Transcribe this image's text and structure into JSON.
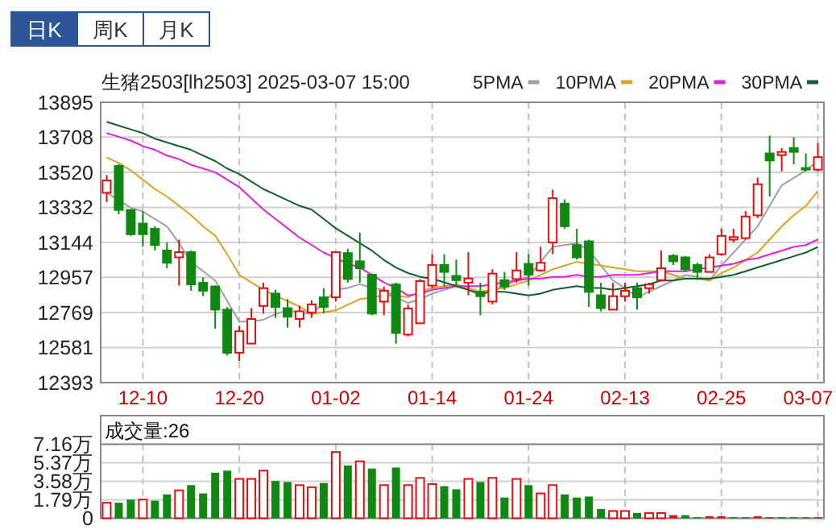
{
  "chart_data": [
    {
      "type": "candlestick",
      "title": "生猪2503[lh2503] 2025-03-07 15:00",
      "annotations": [
        "日K",
        "周K",
        "月K"
      ],
      "categories": [
        null,
        null,
        null,
        "12-10",
        null,
        null,
        null,
        null,
        null,
        null,
        null,
        "12-20",
        null,
        null,
        null,
        null,
        null,
        null,
        null,
        "01-02",
        null,
        null,
        null,
        null,
        null,
        null,
        null,
        "01-14",
        null,
        null,
        null,
        null,
        null,
        null,
        null,
        "01-24",
        null,
        null,
        null,
        null,
        null,
        null,
        null,
        "02-13",
        null,
        null,
        null,
        null,
        null,
        null,
        null,
        "02-25",
        null,
        null,
        null,
        null,
        null,
        null,
        null,
        "03-07"
      ],
      "ohlc": [
        [
          13410,
          13505,
          13361,
          13476
        ],
        [
          13554,
          13563,
          13295,
          13318
        ],
        [
          13318,
          13323,
          13179,
          13188
        ],
        [
          13245,
          13312,
          13121,
          13188
        ],
        [
          13217,
          13231,
          13101,
          13130
        ],
        [
          13101,
          13144,
          13006,
          13035
        ],
        [
          13064,
          13159,
          12913,
          13092
        ],
        [
          13092,
          13101,
          12885,
          12919
        ],
        [
          12928,
          12957,
          12856,
          12885
        ],
        [
          12908,
          12913,
          12682,
          12784
        ],
        [
          12784,
          12798,
          12538,
          12553
        ],
        [
          12553,
          12697,
          12509,
          12668
        ],
        [
          12602,
          12792,
          12602,
          12734
        ],
        [
          12804,
          12928,
          12763,
          12899
        ],
        [
          12870,
          12890,
          12740,
          12798
        ],
        [
          12792,
          12841,
          12688,
          12746
        ],
        [
          12734,
          12804,
          12688,
          12775
        ],
        [
          12769,
          12833,
          12740,
          12812
        ],
        [
          12850,
          12899,
          12763,
          12798
        ],
        [
          12850,
          13092,
          12827,
          13092
        ],
        [
          13087,
          13110,
          12928,
          12948
        ],
        [
          13043,
          13196,
          12928,
          13006
        ],
        [
          12971,
          12977,
          12754,
          12763
        ],
        [
          12827,
          12908,
          12754,
          12885
        ],
        [
          12919,
          12928,
          12602,
          12659
        ],
        [
          12650,
          12810,
          12640,
          12790
        ],
        [
          12711,
          12948,
          12711,
          12937
        ],
        [
          12913,
          13081,
          12899,
          13023
        ],
        [
          13023,
          13081,
          12908,
          12986
        ],
        [
          12965,
          13052,
          12908,
          12942
        ],
        [
          12928,
          13092,
          12861,
          12951
        ],
        [
          12879,
          12928,
          12755,
          12856
        ],
        [
          12827,
          13000,
          12812,
          12977
        ],
        [
          12942,
          12986,
          12890,
          12908
        ],
        [
          12948,
          13092,
          12928,
          12994
        ],
        [
          13029,
          13081,
          12913,
          12971
        ],
        [
          12994,
          13121,
          12986,
          13035
        ],
        [
          13144,
          13427,
          13081,
          13381
        ],
        [
          13352,
          13375,
          13217,
          13231
        ],
        [
          13130,
          13217,
          13052,
          13064
        ],
        [
          13150,
          13159,
          12798,
          12879
        ],
        [
          12861,
          12928,
          12775,
          12792
        ],
        [
          12784,
          12928,
          12784,
          12856
        ],
        [
          12856,
          12928,
          12827,
          12885
        ],
        [
          12899,
          12928,
          12784,
          12850
        ],
        [
          12899,
          12928,
          12870,
          12919
        ],
        [
          12942,
          13101,
          12942,
          13006
        ],
        [
          13072,
          13081,
          13023,
          13043
        ],
        [
          13064,
          13072,
          12986,
          13000
        ],
        [
          13023,
          13035,
          12942,
          12986
        ],
        [
          12986,
          13081,
          12986,
          13064
        ],
        [
          13081,
          13217,
          13072,
          13179
        ],
        [
          13159,
          13217,
          13144,
          13173
        ],
        [
          13167,
          13312,
          13159,
          13283
        ],
        [
          13289,
          13491,
          13275,
          13456
        ],
        [
          13621,
          13716,
          13390,
          13583
        ],
        [
          13612,
          13650,
          13525,
          13629
        ],
        [
          13650,
          13707,
          13563,
          13629
        ],
        [
          13543,
          13621,
          13525,
          13534
        ],
        [
          13534,
          13678,
          13525,
          13601
        ]
      ],
      "colors": [
        "#e01010",
        "#118811",
        "#118811",
        "#118811",
        "#118811",
        "#118811",
        "#e01010",
        "#118811",
        "#118811",
        "#118811",
        "#118811",
        "#e01010",
        "#e01010",
        "#e01010",
        "#118811",
        "#118811",
        "#e01010",
        "#e01010",
        "#118811",
        "#e01010",
        "#118811",
        "#118811",
        "#118811",
        "#e01010",
        "#118811",
        "#e01010",
        "#e01010",
        "#e01010",
        "#118811",
        "#118811",
        "#e01010",
        "#118811",
        "#e01010",
        "#118811",
        "#e01010",
        "#118811",
        "#e01010",
        "#e01010",
        "#118811",
        "#118811",
        "#118811",
        "#118811",
        "#e01010",
        "#e01010",
        "#118811",
        "#e01010",
        "#e01010",
        "#118811",
        "#118811",
        "#118811",
        "#e01010",
        "#e01010",
        "#e01010",
        "#e01010",
        "#e01010",
        "#118811",
        "#e01010",
        "#118811",
        "#118811",
        "#e01010"
      ],
      "series": [
        {
          "name": "5PMA",
          "type": "line",
          "color": "#a0a0a0",
          "values": [
            13410,
            13370,
            13330,
            13310,
            13270,
            13230,
            13140,
            13040,
            12990,
            12940,
            12830,
            12720,
            12720,
            12730,
            12760,
            12780,
            12770,
            12760,
            12820,
            12890,
            12900,
            12920,
            12900,
            12890,
            12850,
            12820,
            12840,
            12870,
            12890,
            12910,
            12890,
            12860,
            12890,
            12910,
            12940,
            12960,
            13040,
            13120,
            13130,
            13140,
            13100,
            13020,
            12940,
            12900,
            12850,
            12880,
            12910,
            12940,
            12970,
            12960,
            12940,
            13020,
            13090,
            13160,
            13230,
            13340,
            13450,
            13490,
            13530,
            13580
          ]
        },
        {
          "name": "10PMA",
          "type": "line",
          "color": "#e0a020",
          "values": [
            13600,
            13570,
            13530,
            13480,
            13430,
            13390,
            13340,
            13290,
            13230,
            13180,
            13080,
            12970,
            12930,
            12890,
            12860,
            12830,
            12800,
            12760,
            12770,
            12780,
            12810,
            12840,
            12850,
            12860,
            12860,
            12850,
            12880,
            12900,
            12910,
            12920,
            12900,
            12880,
            12890,
            12900,
            12920,
            12940,
            12970,
            13000,
            13020,
            13040,
            13030,
            13020,
            13010,
            13000,
            12990,
            12990,
            12990,
            12970,
            12950,
            12950,
            12940,
            12980,
            13010,
            13050,
            13090,
            13160,
            13230,
            13290,
            13340,
            13420
          ]
        },
        {
          "name": "20PMA",
          "type": "line",
          "color": "#e020e0",
          "values": [
            13730,
            13710,
            13690,
            13660,
            13640,
            13610,
            13590,
            13560,
            13540,
            13520,
            13480,
            13440,
            13380,
            13320,
            13270,
            13220,
            13170,
            13130,
            13090,
            13060,
            13030,
            13010,
            12970,
            12930,
            12900,
            12860,
            12870,
            12890,
            12900,
            12910,
            12910,
            12910,
            12920,
            12930,
            12940,
            12950,
            12950,
            12960,
            12960,
            12970,
            12960,
            12960,
            12970,
            12970,
            12970,
            12980,
            12990,
            12990,
            12990,
            13000,
            13010,
            13020,
            13030,
            13050,
            13060,
            13080,
            13100,
            13120,
            13130,
            13160
          ]
        },
        {
          "name": "30PMA",
          "type": "line",
          "color": "#106030",
          "values": [
            13790,
            13770,
            13750,
            13730,
            13700,
            13680,
            13660,
            13640,
            13610,
            13580,
            13540,
            13510,
            13470,
            13430,
            13400,
            13370,
            13340,
            13320,
            13270,
            13220,
            13180,
            13140,
            13100,
            13050,
            13010,
            12980,
            12960,
            12950,
            12930,
            12910,
            12890,
            12870,
            12880,
            12880,
            12870,
            12860,
            12870,
            12890,
            12900,
            12910,
            12900,
            12900,
            12890,
            12900,
            12910,
            12920,
            12940,
            12940,
            12950,
            12950,
            12950,
            12960,
            12970,
            12990,
            13010,
            13030,
            13050,
            13070,
            13090,
            13120
          ]
        }
      ],
      "ylim": [
        12393,
        13895
      ],
      "yticks": [
        12393,
        12581,
        12769,
        12957,
        13144,
        13332,
        13520,
        13708,
        13895
      ],
      "grid": true,
      "legend": "top right"
    },
    {
      "type": "bar",
      "title": "成交量:26",
      "categories": [
        null,
        null,
        null,
        null,
        null,
        null,
        null,
        null,
        null,
        null,
        null,
        null,
        null,
        null,
        null,
        null,
        null,
        null,
        null,
        null,
        null,
        null,
        null,
        null,
        null,
        null,
        null,
        null,
        null,
        null,
        null,
        null,
        null,
        null,
        null,
        null,
        null,
        null,
        null,
        null,
        null,
        null,
        null,
        null,
        null,
        null,
        null,
        null,
        null,
        null,
        null,
        null,
        null,
        null,
        null,
        null,
        null,
        null,
        null,
        null
      ],
      "values": [
        1.5,
        1.5,
        1.8,
        1.8,
        1.7,
        2.3,
        2.7,
        3.2,
        2.4,
        4.4,
        4.6,
        3.8,
        3.8,
        4.6,
        3.6,
        3.5,
        3.2,
        3.0,
        3.4,
        6.4,
        5.1,
        5.5,
        4.8,
        3.2,
        4.9,
        3.2,
        3.9,
        3.3,
        3.1,
        2.8,
        3.8,
        3.5,
        3.9,
        2.0,
        3.8,
        3.2,
        2.4,
        3.2,
        2.3,
        2.0,
        2.1,
        0.9,
        0.7,
        0.7,
        0.5,
        0.5,
        0.5,
        0.3,
        0.3,
        0.1,
        0.2,
        0.2,
        0.1,
        0.1,
        0.2,
        0.1,
        0.1,
        0.1,
        0.1,
        0.1
      ],
      "colors": [
        "#e01010",
        "#118811",
        "#118811",
        "#e01010",
        "#118811",
        "#118811",
        "#e01010",
        "#118811",
        "#118811",
        "#118811",
        "#118811",
        "#e01010",
        "#e01010",
        "#e01010",
        "#118811",
        "#118811",
        "#e01010",
        "#e01010",
        "#118811",
        "#e01010",
        "#118811",
        "#e01010",
        "#118811",
        "#e01010",
        "#118811",
        "#e01010",
        "#e01010",
        "#e01010",
        "#118811",
        "#118811",
        "#e01010",
        "#118811",
        "#e01010",
        "#118811",
        "#e01010",
        "#118811",
        "#e01010",
        "#e01010",
        "#118811",
        "#118811",
        "#118811",
        "#118811",
        "#e01010",
        "#e01010",
        "#118811",
        "#e01010",
        "#e01010",
        "#e01010",
        "#118811",
        "#118811",
        "#e01010",
        "#e01010",
        "#118811",
        "#118811",
        "#e01010",
        "#e01010",
        "#118811",
        "#118811",
        "#118811",
        "#e01010"
      ],
      "ylim": [
        0,
        7.16
      ],
      "yticks": [
        0,
        {
          "value": 1.79,
          "label": "1.79万"
        },
        {
          "value": 3.58,
          "label": "3.58万"
        },
        {
          "value": 5.37,
          "label": "5.37万"
        },
        {
          "value": 7.16,
          "label": "7.16万"
        }
      ],
      "grid": true
    }
  ]
}
